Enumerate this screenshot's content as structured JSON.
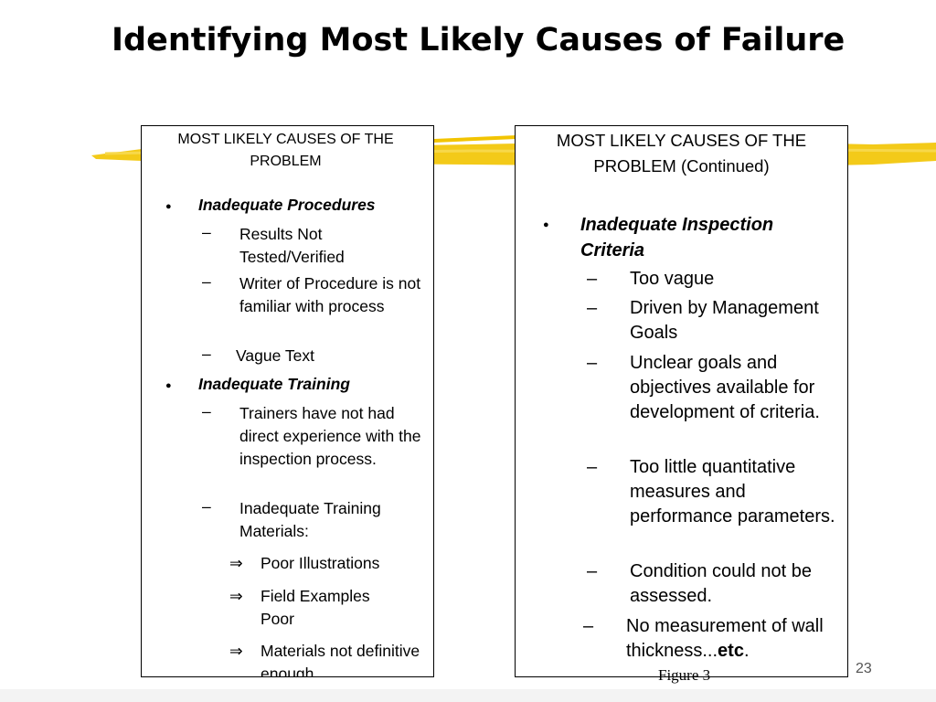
{
  "slide": {
    "title": "Identifying Most Likely Causes of Failure",
    "page_number": "23",
    "figure_caption": "Figure 3",
    "accent_color": "#f2c400"
  },
  "left_box": {
    "heading": "MOST LIKELY CAUSES OF THE PROBLEM",
    "sections": [
      {
        "label": "Inadequate Procedures",
        "items": [
          "Results Not Tested/Verified",
          "Writer of Procedure is not familiar with process",
          "Vague Text"
        ]
      },
      {
        "label": "Inadequate Training",
        "items": [
          "Trainers have not had direct experience with the inspection process.",
          "Inadequate Training Materials:"
        ],
        "arrows": [
          "Poor Illustrations",
          "Field Examples Poor",
          "Materials not definitive enough"
        ]
      }
    ]
  },
  "right_box": {
    "heading": "MOST LIKELY CAUSES OF THE PROBLEM (Continued)",
    "section": {
      "label": "Inadequate Inspection Criteria",
      "items": [
        "Too vague",
        "Driven by Management Goals",
        "Unclear goals and objectives available for development of criteria.",
        "Too little quantitative measures and performance parameters.",
        "Condition could not be assessed."
      ],
      "last_item": "No measurement of wall thickness...",
      "last_item_bold": "etc",
      "last_item_end": "."
    }
  }
}
